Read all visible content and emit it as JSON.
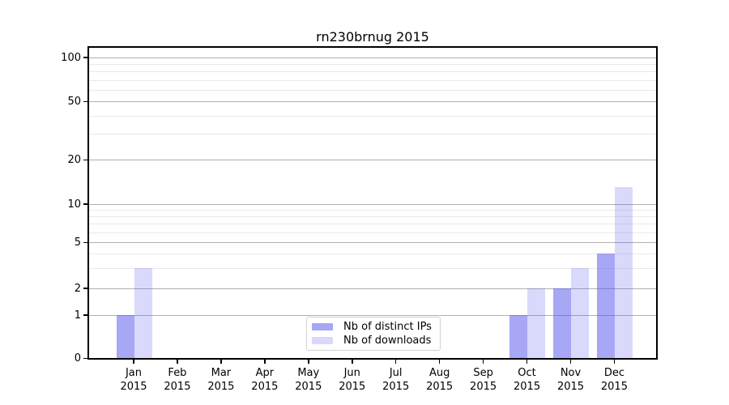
{
  "chart_data": {
    "type": "bar",
    "title": "rn230brnug 2015",
    "categories": [
      "Jan",
      "Feb",
      "Mar",
      "Apr",
      "May",
      "Jun",
      "Jul",
      "Aug",
      "Sep",
      "Oct",
      "Nov",
      "Dec"
    ],
    "xtick_year_line": "2015",
    "series": [
      {
        "name": "Nb of distinct IPs",
        "color": "#aaaaf4",
        "fill": "rgba(80,80,235,0.5)",
        "values": [
          1,
          0,
          0,
          0,
          0,
          0,
          0,
          0,
          0,
          1,
          2,
          4
        ]
      },
      {
        "name": "Nb of downloads",
        "color": "#d9d9fa",
        "fill": "rgba(80,80,235,0.22)",
        "values": [
          3,
          0,
          0,
          0,
          0,
          0,
          0,
          0,
          0,
          2,
          3,
          13
        ]
      }
    ],
    "xlabel": "",
    "ylabel": "",
    "yscale": "log-like (symlog with 0 at axis base)",
    "ytick_labels": [
      "0",
      "1",
      "2",
      "5",
      "10",
      "20",
      "50",
      "100"
    ],
    "ytick_values": [
      0,
      1,
      2,
      5,
      10,
      20,
      50,
      100
    ],
    "ylim": [
      0,
      117
    ],
    "grid": "horizontal major and minor gridlines",
    "legend_position": "lower center inside plot"
  }
}
